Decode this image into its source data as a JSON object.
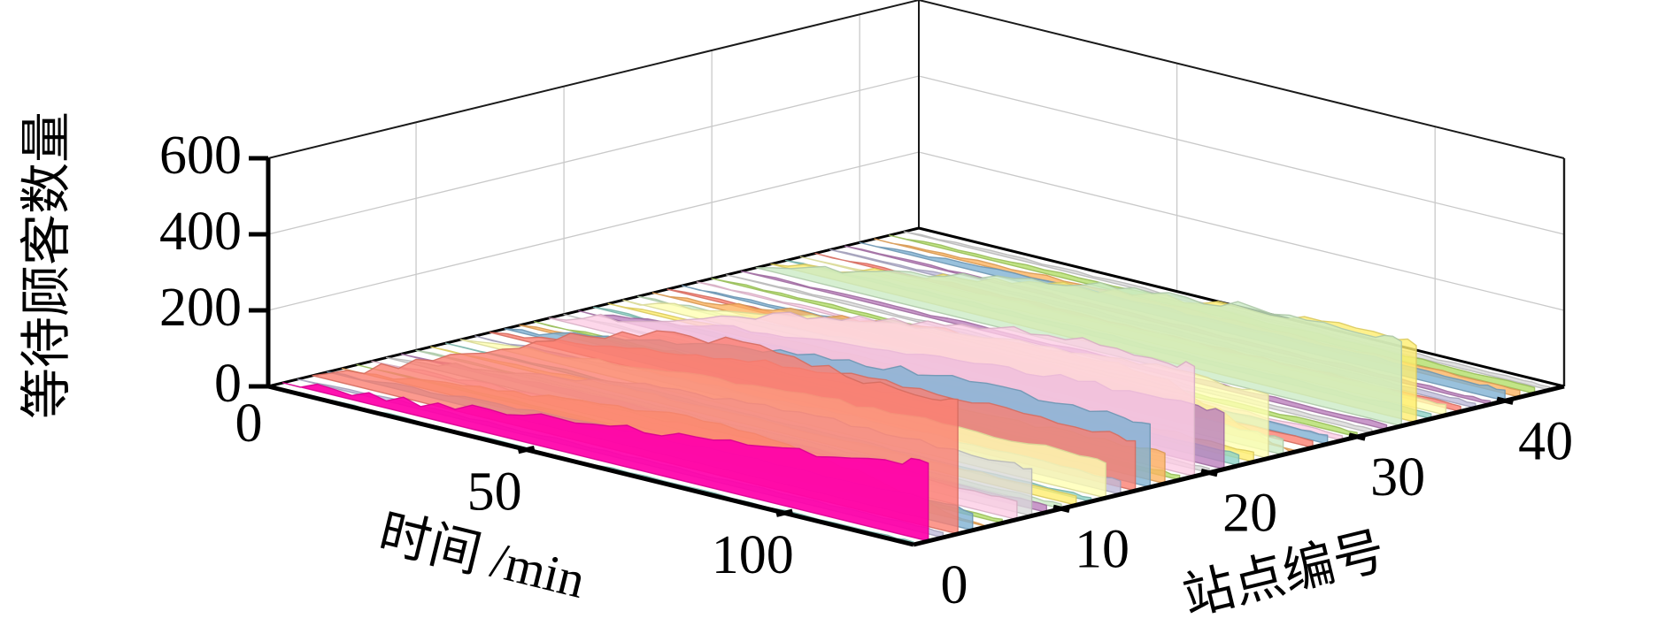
{
  "figure": {
    "background": "#ffffff",
    "grid_color": "#c9c9c9",
    "spine_color": "#000000"
  },
  "chart_data": {
    "type": "area",
    "subtype": "3d-ribbon-waterfall",
    "title": "",
    "xlabel": "时间 /min",
    "ylabel": "站点编号",
    "zlabel": "等待顾客数量",
    "x_ticks": [
      0,
      50,
      100
    ],
    "y_ticks": [
      0,
      10,
      20,
      30,
      40
    ],
    "z_ticks": [
      0,
      200,
      400,
      600
    ],
    "x_range": [
      0,
      125
    ],
    "y_range": [
      0,
      44
    ],
    "z_range": [
      0,
      600
    ],
    "grid": true,
    "legend": false,
    "highlight_color": "#ff00aa",
    "t_samples": [
      0,
      10,
      20,
      30,
      40,
      50,
      60,
      70,
      80,
      90,
      100,
      110,
      120,
      125
    ],
    "series": [
      {
        "station": 0,
        "color": "#8dd3c7",
        "values": [
          0,
          3,
          4,
          6,
          5,
          6,
          5,
          7,
          6,
          7,
          6,
          7,
          7,
          7
        ]
      },
      {
        "station": 1,
        "color": "#ff00aa",
        "values": [
          0,
          14,
          26,
          42,
          58,
          76,
          90,
          108,
          124,
          138,
          156,
          170,
          192,
          205
        ]
      },
      {
        "station": 2,
        "color": "#bebada",
        "values": [
          0,
          5,
          8,
          10,
          9,
          11,
          10,
          12,
          11,
          13,
          12,
          13,
          13,
          13
        ]
      },
      {
        "station": 3,
        "color": "#fb8072",
        "values": [
          0,
          48,
          98,
          158,
          216,
          270,
          310,
          338,
          358,
          365,
          352,
          342,
          348,
          354
        ]
      },
      {
        "station": 4,
        "color": "#80b1d3",
        "values": [
          0,
          8,
          15,
          22,
          30,
          36,
          42,
          40,
          46,
          50,
          48,
          52,
          55,
          44
        ]
      },
      {
        "station": 5,
        "color": "#fdb462",
        "values": [
          0,
          10,
          25,
          42,
          60,
          76,
          88,
          95,
          90,
          78,
          60,
          35,
          0,
          0
        ]
      },
      {
        "station": 6,
        "color": "#b3de69",
        "values": [
          0,
          4,
          6,
          8,
          7,
          9,
          8,
          10,
          9,
          10,
          9,
          10,
          10,
          10
        ]
      },
      {
        "station": 7,
        "color": "#fccde5",
        "values": [
          0,
          6,
          12,
          18,
          25,
          30,
          35,
          38,
          42,
          45,
          44,
          47,
          50,
          48
        ]
      },
      {
        "station": 8,
        "color": "#d9d9d9",
        "values": [
          0,
          16,
          35,
          55,
          75,
          92,
          104,
          114,
          120,
          124,
          122,
          125,
          126,
          124
        ]
      },
      {
        "station": 9,
        "color": "#bc80bd",
        "values": [
          0,
          5,
          9,
          12,
          15,
          13,
          16,
          14,
          17,
          15,
          18,
          16,
          18,
          18
        ]
      },
      {
        "station": 10,
        "color": "#ccebc5",
        "values": [
          0,
          4,
          6,
          9,
          8,
          10,
          9,
          11,
          10,
          12,
          11,
          11,
          12,
          12
        ]
      },
      {
        "station": 11,
        "color": "#ffed6f",
        "values": [
          0,
          6,
          10,
          14,
          18,
          16,
          20,
          18,
          22,
          20,
          24,
          22,
          24,
          24
        ]
      },
      {
        "station": 12,
        "color": "#8dd3c7",
        "values": [
          0,
          4,
          7,
          6,
          8,
          7,
          9,
          8,
          10,
          9,
          10,
          9,
          10,
          10
        ]
      },
      {
        "station": 13,
        "color": "#ffffb3",
        "values": [
          0,
          12,
          24,
          38,
          50,
          62,
          72,
          80,
          86,
          92,
          90,
          94,
          96,
          92
        ]
      },
      {
        "station": 14,
        "color": "#bebada",
        "values": [
          0,
          4,
          9,
          14,
          19,
          23,
          27,
          30,
          33,
          35,
          34,
          36,
          35,
          35
        ]
      },
      {
        "station": 15,
        "color": "#fb8072",
        "values": [
          0,
          16,
          36,
          56,
          76,
          96,
          110,
          120,
          128,
          126,
          131,
          128,
          133,
          131
        ]
      },
      {
        "station": 16,
        "color": "#80b1d3",
        "values": [
          0,
          22,
          44,
          68,
          90,
          110,
          126,
          141,
          153,
          161,
          166,
          163,
          169,
          166
        ]
      },
      {
        "station": 17,
        "color": "#fdb462",
        "values": [
          0,
          9,
          19,
          29,
          38,
          47,
          54,
          61,
          66,
          71,
          69,
          74,
          77,
          80
        ]
      },
      {
        "station": 18,
        "color": "#b3de69",
        "values": [
          0,
          4,
          7,
          9,
          8,
          10,
          9,
          11,
          10,
          12,
          11,
          12,
          12,
          12
        ]
      },
      {
        "station": 19,
        "color": "#fccde5",
        "values": [
          0,
          32,
          68,
          104,
          138,
          170,
          198,
          222,
          246,
          266,
          281,
          291,
          286,
          289
        ]
      },
      {
        "station": 20,
        "color": "#d9d9d9",
        "values": [
          0,
          5,
          8,
          7,
          9,
          8,
          10,
          9,
          11,
          10,
          12,
          11,
          11,
          11
        ]
      },
      {
        "station": 21,
        "color": "#bc80bd",
        "values": [
          0,
          16,
          34,
          52,
          70,
          86,
          100,
          112,
          122,
          132,
          140,
          146,
          150,
          148
        ]
      },
      {
        "station": 22,
        "color": "#8dd3c7",
        "values": [
          0,
          4,
          8,
          12,
          15,
          18,
          20,
          23,
          25,
          27,
          26,
          28,
          28,
          28
        ]
      },
      {
        "station": 23,
        "color": "#ffed6f",
        "values": [
          0,
          6,
          11,
          15,
          19,
          23,
          21,
          25,
          24,
          26,
          25,
          27,
          26,
          26
        ]
      },
      {
        "station": 24,
        "color": "#ffffb3",
        "values": [
          0,
          18,
          40,
          62,
          85,
          105,
          122,
          138,
          150,
          160,
          168,
          172,
          170,
          168
        ]
      },
      {
        "station": 25,
        "color": "#ccebc5",
        "values": [
          0,
          6,
          12,
          18,
          23,
          28,
          32,
          35,
          38,
          41,
          39,
          42,
          41,
          41
        ]
      },
      {
        "station": 26,
        "color": "#fdb462",
        "values": [
          0,
          14,
          30,
          47,
          64,
          80,
          94,
          104,
          110,
          112,
          100,
          55,
          0,
          0
        ]
      },
      {
        "station": 27,
        "color": "#fb8072",
        "values": [
          0,
          5,
          8,
          11,
          14,
          13,
          16,
          15,
          17,
          16,
          18,
          17,
          17,
          17
        ]
      },
      {
        "station": 28,
        "color": "#80b1d3",
        "values": [
          0,
          6,
          10,
          14,
          18,
          17,
          20,
          19,
          22,
          21,
          24,
          23,
          23,
          23
        ]
      },
      {
        "station": 29,
        "color": "#fccde5",
        "values": [
          0,
          4,
          6,
          8,
          10,
          9,
          11,
          10,
          12,
          11,
          13,
          12,
          12,
          12
        ]
      },
      {
        "station": 30,
        "color": "#b3de69",
        "values": [
          0,
          4,
          6,
          8,
          7,
          9,
          8,
          10,
          9,
          11,
          10,
          11,
          11,
          11
        ]
      },
      {
        "station": 31,
        "color": "#d9d9d9",
        "values": [
          0,
          4,
          7,
          6,
          8,
          7,
          9,
          8,
          10,
          9,
          11,
          10,
          10,
          10
        ]
      },
      {
        "station": 32,
        "color": "#bc80bd",
        "values": [
          0,
          4,
          7,
          9,
          8,
          10,
          9,
          11,
          10,
          12,
          11,
          12,
          12,
          12
        ]
      },
      {
        "station": 33,
        "color": "#ccebc5",
        "values": [
          0,
          26,
          56,
          86,
          114,
          140,
          162,
          180,
          194,
          207,
          217,
          224,
          227,
          222
        ]
      },
      {
        "station": 34,
        "color": "#ffed6f",
        "values": [
          0,
          22,
          47,
          72,
          97,
          120,
          140,
          157,
          172,
          184,
          194,
          202,
          207,
          202
        ]
      },
      {
        "station": 35,
        "color": "#8dd3c7",
        "values": [
          0,
          4,
          7,
          9,
          11,
          10,
          12,
          11,
          13,
          12,
          14,
          13,
          13,
          13
        ]
      },
      {
        "station": 36,
        "color": "#ffffb3",
        "values": [
          0,
          6,
          11,
          16,
          20,
          24,
          22,
          26,
          25,
          28,
          27,
          29,
          28,
          28
        ]
      },
      {
        "station": 37,
        "color": "#fb8072",
        "values": [
          0,
          4,
          7,
          10,
          12,
          11,
          13,
          12,
          14,
          13,
          15,
          14,
          14,
          14
        ]
      },
      {
        "station": 38,
        "color": "#bebada",
        "values": [
          0,
          4,
          7,
          9,
          8,
          10,
          9,
          11,
          10,
          11,
          11,
          12,
          12,
          12
        ]
      },
      {
        "station": 39,
        "color": "#bc80bd",
        "values": [
          0,
          3,
          5,
          7,
          8,
          7,
          9,
          8,
          9,
          8,
          10,
          9,
          9,
          9
        ]
      },
      {
        "station": 40,
        "color": "#80b1d3",
        "values": [
          0,
          7,
          12,
          17,
          22,
          21,
          25,
          24,
          27,
          26,
          29,
          28,
          28,
          28
        ]
      },
      {
        "station": 41,
        "color": "#fdb462",
        "values": [
          0,
          5,
          9,
          12,
          15,
          14,
          17,
          16,
          18,
          17,
          19,
          18,
          18,
          18
        ]
      },
      {
        "station": 42,
        "color": "#b3de69",
        "values": [
          0,
          5,
          8,
          11,
          14,
          13,
          15,
          14,
          16,
          15,
          17,
          16,
          16,
          16
        ]
      },
      {
        "station": 43,
        "color": "#d9d9d9",
        "values": [
          0,
          3,
          5,
          6,
          7,
          6,
          8,
          7,
          8,
          7,
          9,
          8,
          8,
          8
        ]
      }
    ]
  }
}
